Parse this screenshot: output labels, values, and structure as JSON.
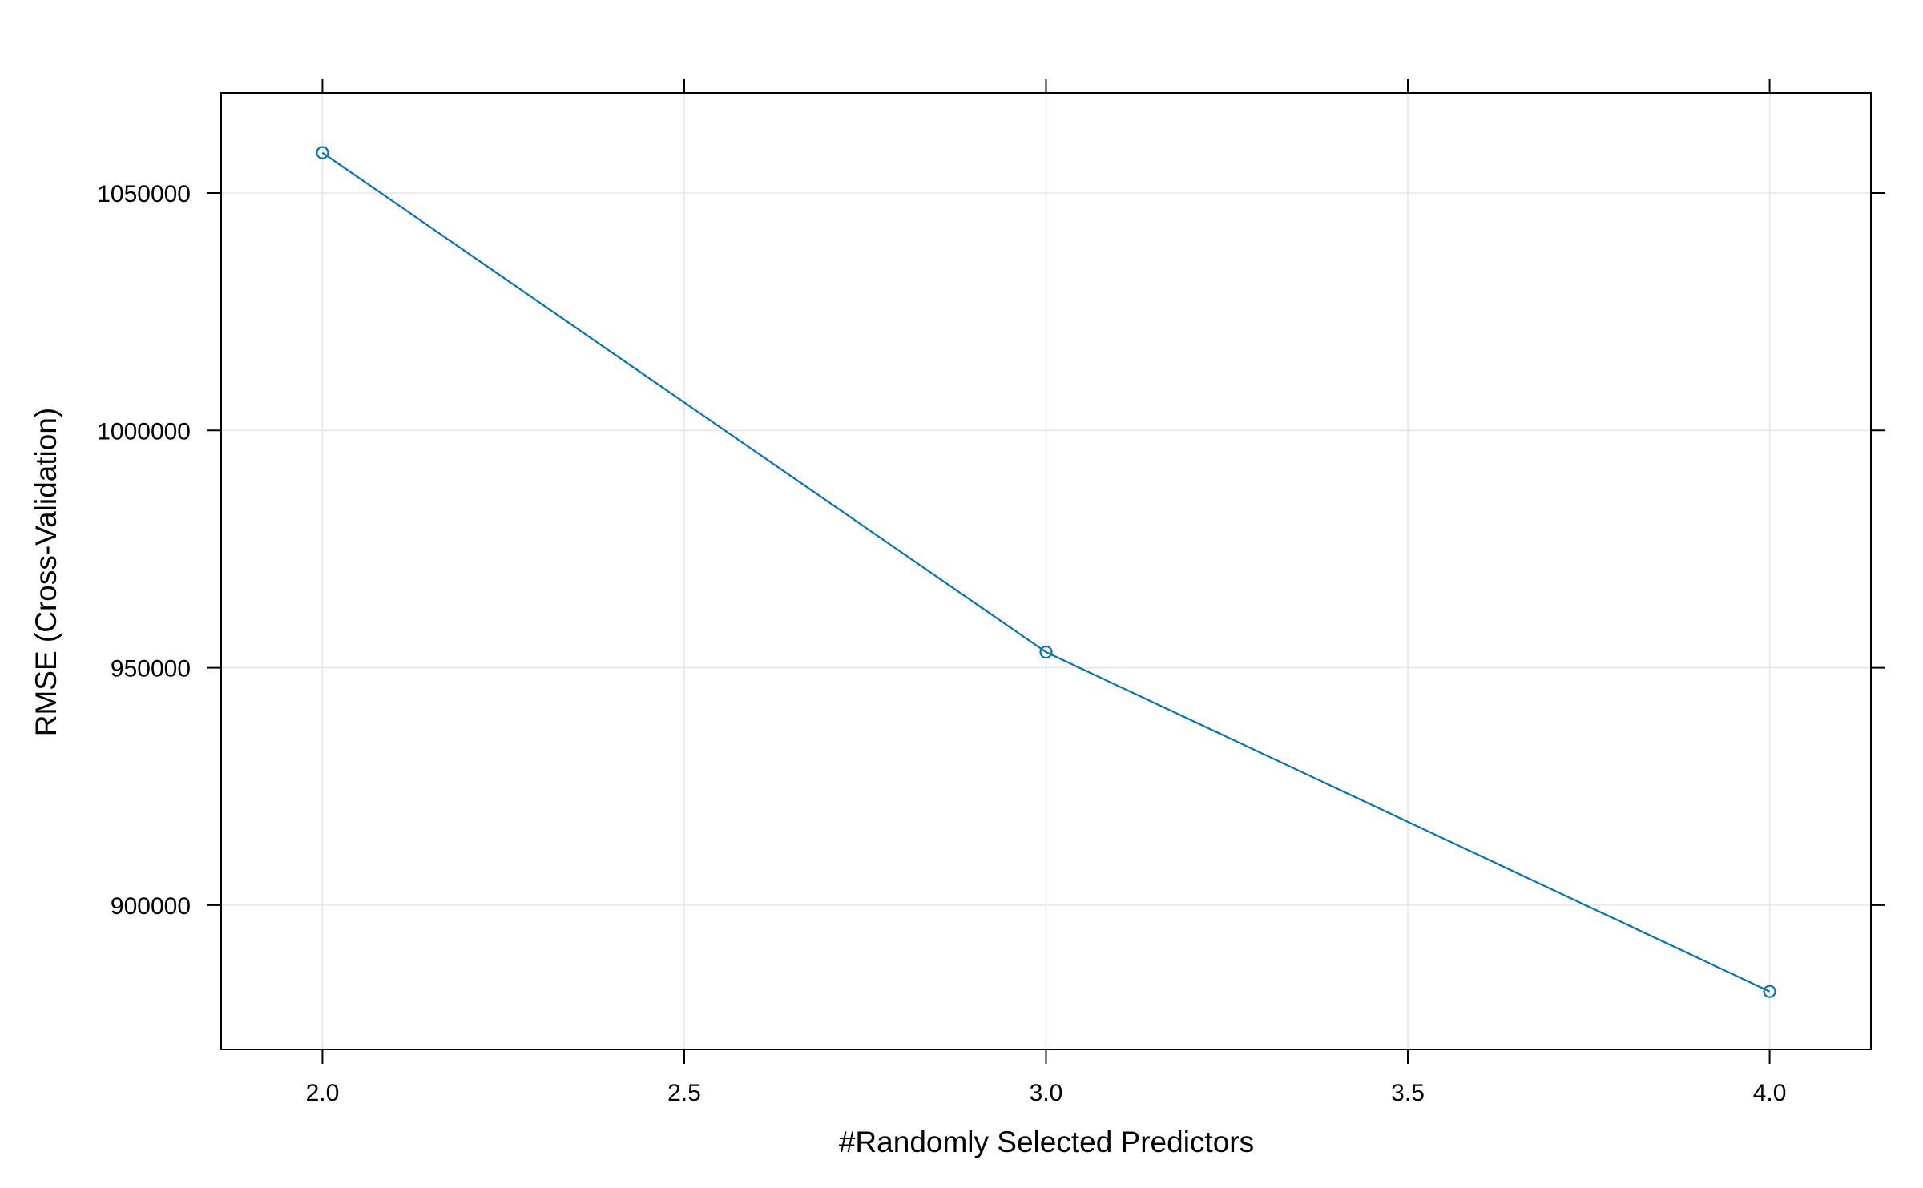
{
  "chart_data": {
    "type": "line",
    "xlabel": "#Randomly Selected Predictors",
    "ylabel": "RMSE (Cross-Validation)",
    "xlim": [
      1.86,
      4.14
    ],
    "ylim": [
      869600,
      1071100
    ],
    "x_ticks": [
      2.0,
      2.5,
      3.0,
      3.5,
      4.0
    ],
    "x_tick_labels": [
      "2.0",
      "2.5",
      "3.0",
      "3.5",
      "4.0"
    ],
    "y_ticks": [
      900000,
      950000,
      1000000,
      1050000
    ],
    "y_tick_labels": [
      "900000",
      "950000",
      "1000000",
      "1050000"
    ],
    "grid": true,
    "series": [
      {
        "x": [
          2,
          3,
          4
        ],
        "y": [
          1058500,
          953300,
          881800
        ],
        "color": "#0072b2",
        "marker": "open-circle"
      }
    ]
  }
}
